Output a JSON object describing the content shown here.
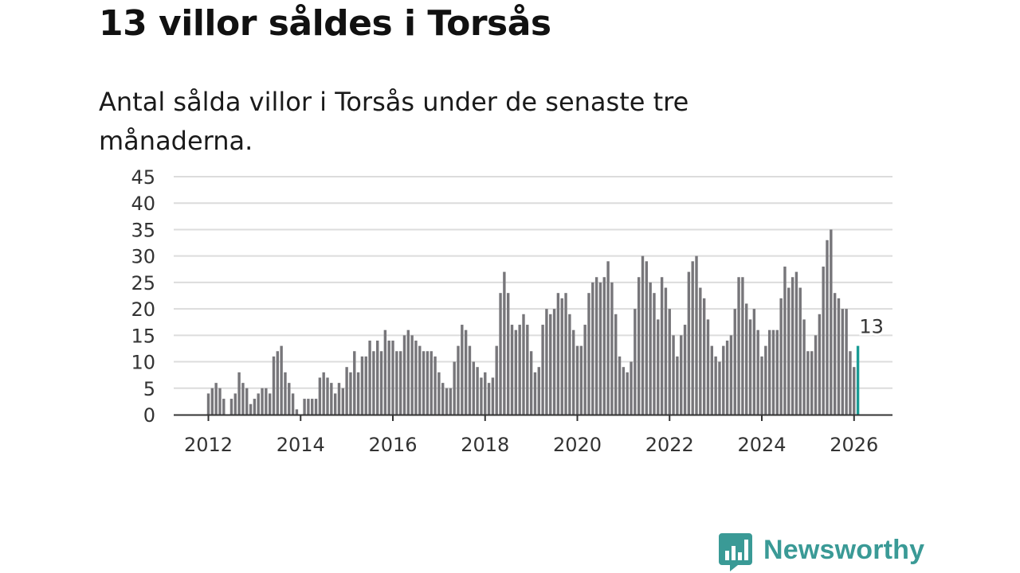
{
  "title": "13 villor såldes i Torsås",
  "subtitle": "Antal sålda villor i Torsås under de senaste tre månaderna.",
  "brand": {
    "name": "Newsworthy",
    "color": "#3a9a96",
    "icon": "chart-bubble-icon"
  },
  "chart_data": {
    "type": "bar",
    "title": "13 villor såldes i Torsås",
    "xlabel": "",
    "ylabel": "",
    "ylim": [
      0,
      45
    ],
    "yticks": [
      "0",
      "5",
      "10",
      "15",
      "20",
      "25",
      "30",
      "35",
      "40",
      "45"
    ],
    "xticks": [
      "2012",
      "2014",
      "2016",
      "2018",
      "2020",
      "2022",
      "2024",
      "2026"
    ],
    "start_year": 2012,
    "start_month": 1,
    "grid": true,
    "bar_color": "#77767a",
    "highlight_color": "#1a9c95",
    "highlight_label": "13",
    "values": [
      4,
      5,
      6,
      5,
      3,
      0,
      3,
      4,
      8,
      6,
      5,
      2,
      3,
      4,
      5,
      5,
      4,
      11,
      12,
      13,
      8,
      6,
      4,
      1,
      0,
      3,
      3,
      3,
      3,
      7,
      8,
      7,
      6,
      4,
      6,
      5,
      9,
      8,
      12,
      8,
      11,
      11,
      14,
      12,
      14,
      12,
      16,
      14,
      14,
      12,
      12,
      15,
      16,
      15,
      14,
      13,
      12,
      12,
      12,
      11,
      8,
      6,
      5,
      5,
      10,
      13,
      17,
      16,
      13,
      10,
      9,
      7,
      8,
      6,
      7,
      13,
      23,
      27,
      23,
      17,
      16,
      17,
      19,
      17,
      12,
      8,
      9,
      17,
      20,
      19,
      20,
      23,
      22,
      23,
      19,
      16,
      13,
      13,
      17,
      23,
      25,
      26,
      25,
      26,
      29,
      25,
      19,
      11,
      9,
      8,
      10,
      20,
      26,
      30,
      29,
      25,
      23,
      18,
      26,
      24,
      20,
      15,
      11,
      15,
      17,
      27,
      29,
      30,
      24,
      22,
      18,
      13,
      11,
      10,
      13,
      14,
      15,
      20,
      26,
      26,
      21,
      18,
      20,
      16,
      11,
      13,
      16,
      16,
      16,
      22,
      28,
      24,
      26,
      27,
      24,
      18,
      12,
      12,
      15,
      19,
      28,
      33,
      35,
      23,
      22,
      20,
      20,
      12,
      9,
      13
    ]
  }
}
